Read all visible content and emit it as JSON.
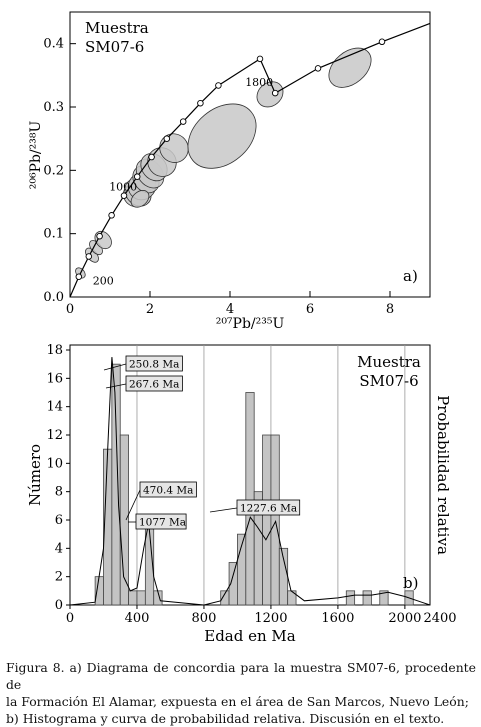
{
  "chart_data": [
    {
      "type": "scatter",
      "panel": "a)",
      "sample_label_line1": "Muestra",
      "sample_label_line2": "SM07-6",
      "xlabel": "²⁰⁷Pb/²³⁵U",
      "ylabel": "²⁰⁶Pb/²³⁸U",
      "xlim": [
        0,
        9
      ],
      "ylim": [
        0,
        0.45
      ],
      "x_ticks": [
        0,
        2,
        4,
        6,
        8
      ],
      "y_ticks": [
        0.0,
        0.1,
        0.2,
        0.3,
        0.4
      ],
      "concordia_age_labels": [
        {
          "age": "200",
          "x": 0.22,
          "y": 0.032
        },
        {
          "age": "1000",
          "x": 1.68,
          "y": 0.168
        },
        {
          "age": "1800",
          "x": 5.13,
          "y": 0.322
        }
      ],
      "concordia_markers": [
        {
          "x": 0.22,
          "y": 0.032
        },
        {
          "x": 0.47,
          "y": 0.064
        },
        {
          "x": 0.74,
          "y": 0.096
        },
        {
          "x": 1.04,
          "y": 0.129
        },
        {
          "x": 1.35,
          "y": 0.16
        },
        {
          "x": 1.68,
          "y": 0.19
        },
        {
          "x": 2.04,
          "y": 0.221
        },
        {
          "x": 2.42,
          "y": 0.25
        },
        {
          "x": 2.83,
          "y": 0.277
        },
        {
          "x": 3.26,
          "y": 0.306
        },
        {
          "x": 3.71,
          "y": 0.334
        },
        {
          "x": 4.75,
          "y": 0.376
        },
        {
          "x": 5.13,
          "y": 0.322
        },
        {
          "x": 6.2,
          "y": 0.361
        },
        {
          "x": 7.8,
          "y": 0.403
        }
      ],
      "error_ellipses": [
        {
          "x": 0.26,
          "y": 0.038,
          "rx": 0.1,
          "ry": 0.006
        },
        {
          "x": 0.55,
          "y": 0.066,
          "rx": 0.12,
          "ry": 0.01
        },
        {
          "x": 0.65,
          "y": 0.078,
          "rx": 0.12,
          "ry": 0.01
        },
        {
          "x": 0.83,
          "y": 0.09,
          "rx": 0.18,
          "ry": 0.012
        },
        {
          "x": 1.6,
          "y": 0.16,
          "rx": 0.25,
          "ry": 0.015
        },
        {
          "x": 1.7,
          "y": 0.165,
          "rx": 0.3,
          "ry": 0.02
        },
        {
          "x": 1.8,
          "y": 0.175,
          "rx": 0.35,
          "ry": 0.018
        },
        {
          "x": 1.9,
          "y": 0.186,
          "rx": 0.3,
          "ry": 0.02
        },
        {
          "x": 2.0,
          "y": 0.195,
          "rx": 0.3,
          "ry": 0.022
        },
        {
          "x": 2.1,
          "y": 0.205,
          "rx": 0.3,
          "ry": 0.02
        },
        {
          "x": 2.3,
          "y": 0.213,
          "rx": 0.35,
          "ry": 0.02
        },
        {
          "x": 2.6,
          "y": 0.235,
          "rx": 0.35,
          "ry": 0.02
        },
        {
          "x": 1.75,
          "y": 0.155,
          "rx": 0.25,
          "ry": 0.008
        },
        {
          "x": 3.8,
          "y": 0.254,
          "rx": 0.95,
          "ry": 0.04
        },
        {
          "x": 5.0,
          "y": 0.32,
          "rx": 0.35,
          "ry": 0.015
        },
        {
          "x": 7.0,
          "y": 0.362,
          "rx": 0.6,
          "ry": 0.022
        }
      ]
    },
    {
      "type": "bar",
      "panel": "b)",
      "sample_label_line1": "Muestra",
      "sample_label_line2": "SM07-6",
      "xlabel": "Edad en Ma",
      "ylabel": "Número",
      "y2label": "Probabilidad relativa",
      "xlim": [
        0,
        2150
      ],
      "ylim": [
        0,
        18
      ],
      "x_ticks": [
        0,
        400,
        800,
        1200,
        1600,
        2000,
        2400
      ],
      "y_ticks": [
        0,
        2,
        4,
        6,
        8,
        10,
        12,
        14,
        16,
        18
      ],
      "bin_width": 50,
      "bins": [
        {
          "start": 150,
          "count": 2
        },
        {
          "start": 200,
          "count": 11
        },
        {
          "start": 250,
          "count": 17
        },
        {
          "start": 300,
          "count": 12
        },
        {
          "start": 350,
          "count": 1
        },
        {
          "start": 400,
          "count": 1
        },
        {
          "start": 450,
          "count": 6
        },
        {
          "start": 500,
          "count": 1
        },
        {
          "start": 900,
          "count": 1
        },
        {
          "start": 950,
          "count": 3
        },
        {
          "start": 1000,
          "count": 5
        },
        {
          "start": 1050,
          "count": 15
        },
        {
          "start": 1100,
          "count": 8
        },
        {
          "start": 1150,
          "count": 12
        },
        {
          "start": 1200,
          "count": 12
        },
        {
          "start": 1250,
          "count": 4
        },
        {
          "start": 1300,
          "count": 1
        },
        {
          "start": 1650,
          "count": 1
        },
        {
          "start": 1750,
          "count": 1
        },
        {
          "start": 1850,
          "count": 1
        },
        {
          "start": 2000,
          "count": 1
        }
      ],
      "probability_curve": [
        [
          0,
          0
        ],
        [
          150,
          0.2
        ],
        [
          200,
          4
        ],
        [
          225,
          11
        ],
        [
          250,
          17.5
        ],
        [
          268,
          15
        ],
        [
          290,
          7
        ],
        [
          320,
          2
        ],
        [
          360,
          1
        ],
        [
          400,
          1.2
        ],
        [
          440,
          4
        ],
        [
          470,
          5.8
        ],
        [
          500,
          2
        ],
        [
          540,
          0.3
        ],
        [
          800,
          0
        ],
        [
          900,
          0.3
        ],
        [
          960,
          1.5
        ],
        [
          1020,
          4
        ],
        [
          1077,
          6.2
        ],
        [
          1120,
          5.5
        ],
        [
          1170,
          4.6
        ],
        [
          1228,
          5.9
        ],
        [
          1270,
          3.5
        ],
        [
          1320,
          1
        ],
        [
          1400,
          0.3
        ],
        [
          1600,
          0.5
        ],
        [
          1700,
          0.7
        ],
        [
          1800,
          0.7
        ],
        [
          1900,
          0.9
        ],
        [
          2000,
          0.6
        ],
        [
          2100,
          0.2
        ],
        [
          2150,
          0
        ]
      ],
      "peak_labels": [
        {
          "text": "250.8 Ma",
          "age": 250.8
        },
        {
          "text": "267.6 Ma",
          "age": 267.6
        },
        {
          "text": "470.4 Ma",
          "age": 470.4
        },
        {
          "text": "1077 Ma",
          "age": 1077
        },
        {
          "text": "1227.6 Ma",
          "age": 1227.6
        }
      ]
    }
  ],
  "caption": {
    "line1": "Figura 8. a) Diagrama de concordia para la muestra SM07-6, procedente de",
    "line2": "la Formación El Alamar, expuesta en el área de San Marcos, Nuevo León;",
    "line3": "b) Histograma y curva de probabilidad relativa. Discusión en el texto."
  }
}
